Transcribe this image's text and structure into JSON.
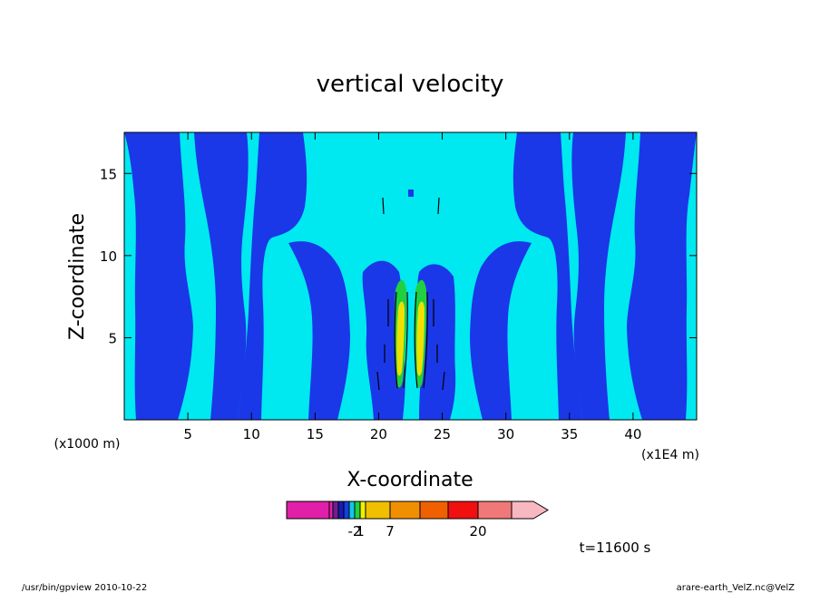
{
  "chart_data": {
    "type": "contour",
    "title": "vertical velocity",
    "xlabel": "X-coordinate",
    "ylabel": "Z-coordinate",
    "x_secondary_units": "(x1000 m)",
    "x_units": "(x1E4 m)",
    "xlim": [
      0,
      45
    ],
    "ylim": [
      0,
      17.5
    ],
    "x_ticks": [
      5,
      10,
      15,
      20,
      25,
      30,
      35,
      40
    ],
    "x_tick_labels": [
      "5",
      "10",
      "15",
      "20",
      "25",
      "30",
      "35",
      "40"
    ],
    "y_ticks": [
      5,
      10,
      15
    ],
    "y_tick_labels": [
      "5",
      "10",
      "15"
    ],
    "colorbar": {
      "labels": [
        {
          "text": "-2",
          "level": 6
        },
        {
          "text": "1",
          "level": 7
        },
        {
          "text": "7",
          "level": 9
        },
        {
          "text": "20",
          "level": 12
        }
      ],
      "levels": [
        {
          "color": "#e020a8"
        },
        {
          "color": "#e020a8"
        },
        {
          "color": "#6a2090"
        },
        {
          "color": "#1a1ab4"
        },
        {
          "color": "#1440e0"
        },
        {
          "color": "#10c8e6"
        },
        {
          "color": "#20d040"
        },
        {
          "color": "#f0f000"
        },
        {
          "color": "#f0c000"
        },
        {
          "color": "#f09000"
        },
        {
          "color": "#f06000"
        },
        {
          "color": "#f01010"
        },
        {
          "color": "#f07878"
        },
        {
          "color": "#f8b8c0"
        }
      ]
    },
    "colors": {
      "background_field": "#00e8f0",
      "downdraft": "#1a38e8",
      "updraft_weak": "#20d040",
      "updraft_strong": "#f0e000",
      "contour_line": "#000000"
    }
  },
  "annotations": {
    "time": "t=11600 s",
    "footer_left": "/usr/bin/gpview   2010-10-22",
    "footer_right": "arare-earth_VelZ.nc@VelZ"
  }
}
